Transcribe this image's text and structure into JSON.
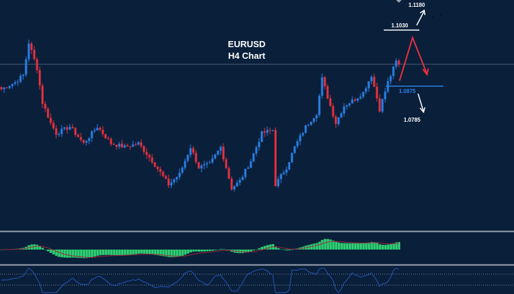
{
  "chart_data": {
    "type": "candlestick",
    "title": "EURUSD",
    "subtitle": "H4 Chart",
    "ylim": [
      1.047,
      1.1116
    ],
    "bars": 146,
    "close_anchors": [
      {
        "bar": 0,
        "price": 1.0867
      },
      {
        "bar": 5,
        "price": 1.0886
      },
      {
        "bar": 8,
        "price": 1.0906
      },
      {
        "bar": 10,
        "price": 1.0997
      },
      {
        "bar": 13,
        "price": 1.0925
      },
      {
        "bar": 15,
        "price": 1.0829
      },
      {
        "bar": 18,
        "price": 1.0772
      },
      {
        "bar": 20,
        "price": 1.0743
      },
      {
        "bar": 25,
        "price": 1.0762
      },
      {
        "bar": 30,
        "price": 1.0715
      },
      {
        "bar": 35,
        "price": 1.0762
      },
      {
        "bar": 40,
        "price": 1.0715
      },
      {
        "bar": 45,
        "price": 1.0705
      },
      {
        "bar": 50,
        "price": 1.0715
      },
      {
        "bar": 55,
        "price": 1.0667
      },
      {
        "bar": 61,
        "price": 1.06
      },
      {
        "bar": 65,
        "price": 1.0629
      },
      {
        "bar": 69,
        "price": 1.0705
      },
      {
        "bar": 72,
        "price": 1.0648
      },
      {
        "bar": 76,
        "price": 1.0657
      },
      {
        "bar": 80,
        "price": 1.0705
      },
      {
        "bar": 84,
        "price": 1.059
      },
      {
        "bar": 87,
        "price": 1.061
      },
      {
        "bar": 91,
        "price": 1.0667
      },
      {
        "bar": 95,
        "price": 1.0743
      },
      {
        "bar": 99,
        "price": 1.0753
      },
      {
        "bar": 100,
        "price": 1.06
      },
      {
        "bar": 104,
        "price": 1.0648
      },
      {
        "bar": 107,
        "price": 1.0705
      },
      {
        "bar": 111,
        "price": 1.0762
      },
      {
        "bar": 115,
        "price": 1.08
      },
      {
        "bar": 117,
        "price": 1.0896
      },
      {
        "bar": 120,
        "price": 1.082
      },
      {
        "bar": 122,
        "price": 1.0772
      },
      {
        "bar": 125,
        "price": 1.082
      },
      {
        "bar": 129,
        "price": 1.0839
      },
      {
        "bar": 132,
        "price": 1.0858
      },
      {
        "bar": 135,
        "price": 1.0906
      },
      {
        "bar": 138,
        "price": 1.081
      },
      {
        "bar": 141,
        "price": 1.0886
      },
      {
        "bar": 144,
        "price": 1.0944
      },
      {
        "bar": 145,
        "price": 1.0934
      }
    ],
    "horizontal_line": 1.0936,
    "levels": [
      {
        "label": "1.1180",
        "price": 1.118
      },
      {
        "label": "1.1030",
        "price": 1.103
      },
      {
        "label": "1.0875",
        "price": 1.0875
      },
      {
        "label": "1.0785",
        "price": 1.0785
      }
    ],
    "indicators": [
      "MACD histogram with signal line",
      "Oscillator with two dotted bands"
    ],
    "colors": {
      "background": "#0a1f3a",
      "bull": "#2a80e6",
      "bear": "#e8313f",
      "macd": "#2ecc71",
      "signal": "#a0283c",
      "osc": "#2456b8",
      "level_blue": "#2a80e6"
    }
  }
}
